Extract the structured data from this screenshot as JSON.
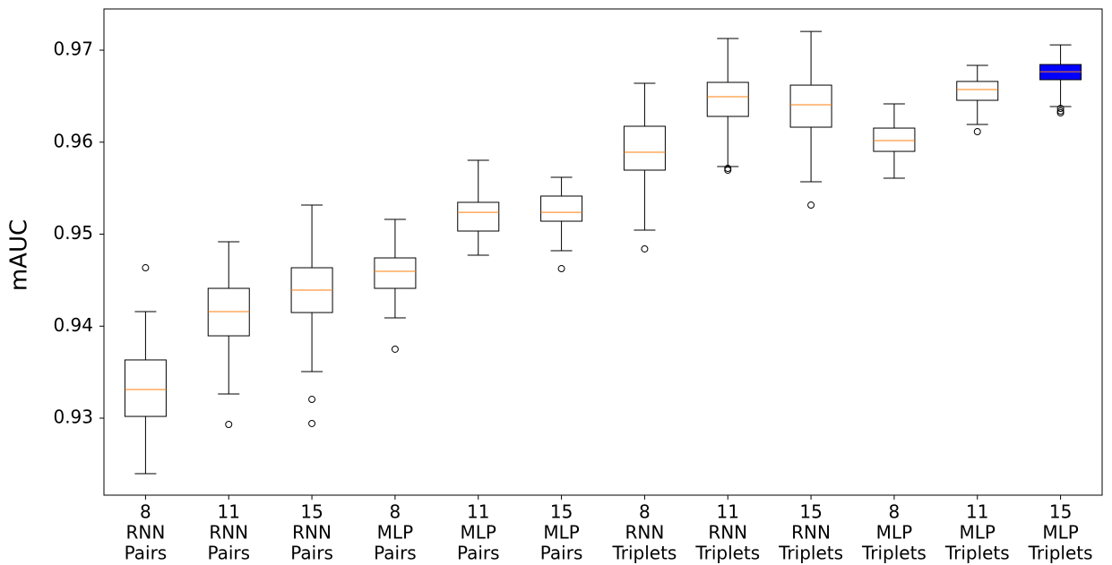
{
  "chart_data": {
    "type": "boxplot",
    "ylabel": "mAUC",
    "categories": [
      [
        "8",
        "RNN",
        "Pairs"
      ],
      [
        "11",
        "RNN",
        "Pairs"
      ],
      [
        "15",
        "RNN",
        "Pairs"
      ],
      [
        "8",
        "MLP",
        "Pairs"
      ],
      [
        "11",
        "MLP",
        "Pairs"
      ],
      [
        "15",
        "MLP",
        "Pairs"
      ],
      [
        "8",
        "RNN",
        "Triplets"
      ],
      [
        "11",
        "RNN",
        "Triplets"
      ],
      [
        "15",
        "RNN",
        "Triplets"
      ],
      [
        "8",
        "MLP",
        "Triplets"
      ],
      [
        "11",
        "MLP",
        "Triplets"
      ],
      [
        "15",
        "MLP",
        "Triplets"
      ]
    ],
    "boxes": [
      {
        "whislo": 0.92397,
        "q1": 0.93019,
        "med": 0.93311,
        "q3": 0.93633,
        "whishi": 0.94158,
        "fliers": [
          0.94635
        ],
        "color": "#ffffff"
      },
      {
        "whislo": 0.93263,
        "q1": 0.93895,
        "med": 0.94158,
        "q3": 0.94411,
        "whishi": 0.94917,
        "fliers": [
          0.92932
        ],
        "color": "#ffffff"
      },
      {
        "whislo": 0.93506,
        "q1": 0.94148,
        "med": 0.94392,
        "q3": 0.94635,
        "whishi": 0.95316,
        "fliers": [
          0.93204,
          0.92942
        ],
        "color": "#ffffff"
      },
      {
        "whislo": 0.9409,
        "q1": 0.94411,
        "med": 0.94596,
        "q3": 0.94742,
        "whishi": 0.95161,
        "fliers": [
          0.9375
        ],
        "color": "#ffffff"
      },
      {
        "whislo": 0.94771,
        "q1": 0.95034,
        "med": 0.95238,
        "q3": 0.95346,
        "whishi": 0.95803,
        "fliers": [],
        "color": "#ffffff"
      },
      {
        "whislo": 0.9482,
        "q1": 0.95141,
        "med": 0.95238,
        "q3": 0.95414,
        "whishi": 0.95618,
        "fliers": [
          0.94625
        ],
        "color": "#ffffff"
      },
      {
        "whislo": 0.95044,
        "q1": 0.95696,
        "med": 0.95891,
        "q3": 0.96173,
        "whishi": 0.9664,
        "fliers": [
          0.9484
        ],
        "color": "#ffffff"
      },
      {
        "whislo": 0.95735,
        "q1": 0.9628,
        "med": 0.96494,
        "q3": 0.9665,
        "whishi": 0.97127,
        "fliers": [
          0.95715,
          0.95696
        ],
        "color": "#ffffff"
      },
      {
        "whislo": 0.95569,
        "q1": 0.96163,
        "med": 0.96406,
        "q3": 0.9662,
        "whishi": 0.97204,
        "fliers": [
          0.95316
        ],
        "color": "#ffffff"
      },
      {
        "whislo": 0.95608,
        "q1": 0.959,
        "med": 0.96017,
        "q3": 0.96153,
        "whishi": 0.96416,
        "fliers": [],
        "color": "#ffffff"
      },
      {
        "whislo": 0.96192,
        "q1": 0.96455,
        "med": 0.96572,
        "q3": 0.9666,
        "whishi": 0.96835,
        "fliers": [
          0.96114
        ],
        "color": "#ffffff"
      },
      {
        "whislo": 0.96387,
        "q1": 0.96679,
        "med": 0.96766,
        "q3": 0.96844,
        "whishi": 0.97058,
        "fliers": [
          0.96367,
          0.96338,
          0.96319
        ],
        "color": "#0000ff"
      }
    ],
    "median_color": "#ff7f0e",
    "ylim": [
      0.92163,
      0.97448
    ],
    "yticks": [
      0.93,
      0.94,
      0.95,
      0.96,
      0.97
    ],
    "grid": false
  }
}
